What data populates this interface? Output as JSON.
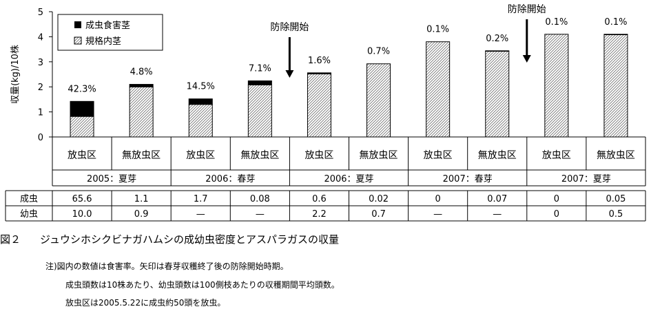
{
  "chart_data": {
    "type": "bar",
    "ylabel": "収量(kg)/10株",
    "ylim": [
      0,
      5
    ],
    "yticks": [
      "0",
      "1",
      "2",
      "3",
      "4",
      "5"
    ],
    "legend_position": "top-left",
    "series": [
      {
        "name": "成虫食害茎",
        "color": "#000000",
        "values": [
          0.6,
          0.1,
          0.22,
          0.16,
          0.04,
          0.0,
          0.0,
          0.02,
          0.0,
          0.02
        ]
      },
      {
        "name": "規格内茎",
        "pattern": "diagonal-hatch",
        "values": [
          0.82,
          2.0,
          1.3,
          2.08,
          2.52,
          2.92,
          3.8,
          3.42,
          4.1,
          4.08
        ]
      }
    ],
    "categories": [
      "放虫区",
      "無放虫区",
      "放虫区",
      "無放虫区",
      "放虫区",
      "無放虫区",
      "放虫区",
      "無放虫区",
      "放虫区",
      "無放虫区"
    ],
    "damage_labels": [
      "42.3%",
      "4.8%",
      "14.5%",
      "7.1%",
      "1.6%",
      "0.7%",
      "0.1%",
      "0.2%",
      "0.1%",
      "0.1%"
    ],
    "groups": [
      "2005：夏芽",
      "2006：春芽",
      "2006：夏芽",
      "2007：春芽",
      "2007：夏芽"
    ],
    "annotations": [
      {
        "text": "防除開始",
        "between": [
          3,
          4
        ]
      },
      {
        "text": "防除開始",
        "between": [
          7,
          8
        ]
      }
    ],
    "table": {
      "rows": [
        {
          "label": "成虫",
          "values": [
            "65.6",
            "1.1",
            "1.7",
            "0.08",
            "0.6",
            "0.02",
            "0",
            "0.07",
            "0",
            "0.05"
          ]
        },
        {
          "label": "幼虫",
          "values": [
            "10.0",
            "0.9",
            "—",
            "—",
            "2.2",
            "0.7",
            "—",
            "—",
            "0",
            "0.5"
          ]
        }
      ]
    }
  },
  "caption": {
    "figure_number": "図２",
    "title": "ジュウシホシクビナガハムシの成幼虫密度とアスパラガスの収量",
    "note1": "注)図内の数値は食害率。矢印は春芽収穫終了後の防除開始時期。",
    "note2": "成虫頭数は10株あたり、幼虫頭数は100側枝あたりの収穫期間平均頭数。",
    "note3": "放虫区は2005.5.22に成虫約50頭を放虫。"
  }
}
